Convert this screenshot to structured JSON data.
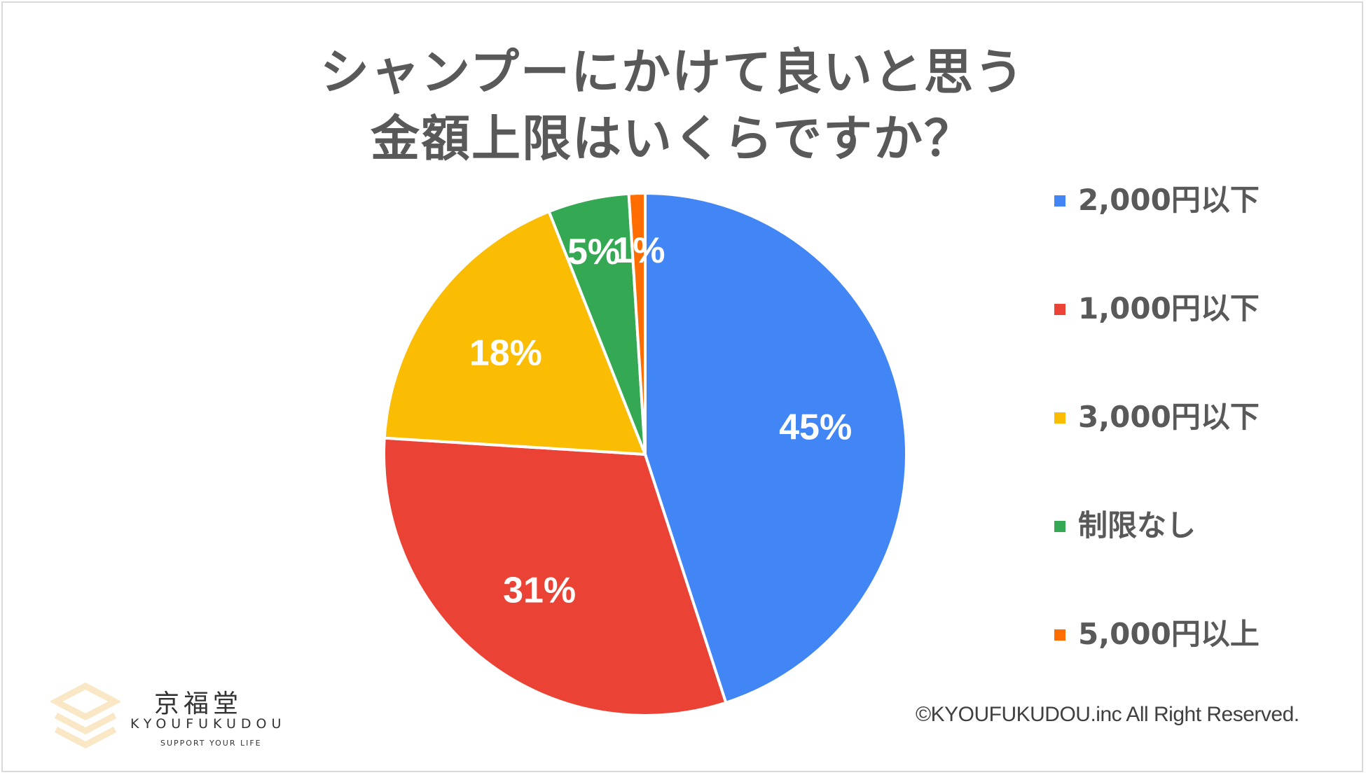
{
  "chart_data": {
    "type": "pie",
    "title_lines": [
      "シャンプーにかけて良いと思う",
      "金額上限はいくらですか？"
    ],
    "slices": [
      {
        "label": "2,000円以下",
        "value": 45,
        "display": "45%",
        "color": "#4285f4"
      },
      {
        "label": "1,000円以下",
        "value": 31,
        "display": "31%",
        "color": "#ea4335"
      },
      {
        "label": "3,000円以下",
        "value": 18,
        "display": "18%",
        "color": "#fbbc04"
      },
      {
        "label": "制限なし",
        "value": 5,
        "display": "5%",
        "color": "#34a853"
      },
      {
        "label": "5,000円以上",
        "value": 1,
        "display": "1%",
        "color": "#ff6d01"
      }
    ],
    "legend_position": "right",
    "start_angle": "12 o'clock",
    "direction": "clockwise"
  },
  "branding": {
    "logo_kanji": "京福堂",
    "logo_english": "KYOUFUKUDOU",
    "logo_tagline": "SUPPORT YOUR LIFE",
    "copyright": "©KYOUFUKUDOU.inc All Right Reserved."
  },
  "icons": {
    "logo": "stacked-layers-logo-icon"
  },
  "colors": {
    "logo": "#f9e7c6",
    "title": "#595959"
  }
}
